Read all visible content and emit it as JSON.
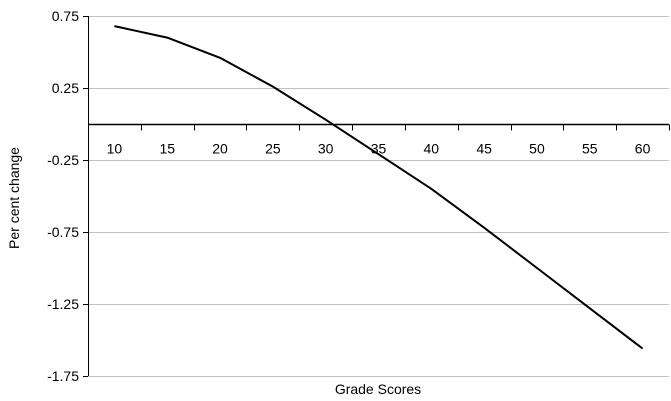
{
  "chart_data": {
    "type": "line",
    "title": "",
    "xlabel": "Grade Scores",
    "ylabel": "Per cent change",
    "x": [
      10,
      15,
      20,
      25,
      30,
      35,
      40,
      45,
      50,
      55,
      60
    ],
    "series": [
      {
        "values": [
          0.68,
          0.6,
          0.46,
          0.26,
          0.03,
          -0.21,
          -0.45,
          -0.72,
          -1.0,
          -1.28,
          -1.56
        ]
      }
    ],
    "yticks": [
      0.75,
      0.25,
      -0.25,
      -0.75,
      -1.25,
      -1.75
    ],
    "ytick_labels": [
      "0.75",
      "0.25",
      "-0.25",
      "-0.75",
      "-1.25",
      "-1.75"
    ],
    "xtick_labels": [
      "10",
      "15",
      "20",
      "25",
      "30",
      "35",
      "40",
      "45",
      "50",
      "55",
      "60"
    ],
    "ylim": [
      -1.75,
      0.75
    ],
    "xlim": [
      7.5,
      62.5
    ],
    "x_axis_crosses_y_at": 0,
    "grid": true,
    "colors": {
      "line": "#000000",
      "grid": "#c0c0c0",
      "axis": "#000000"
    }
  }
}
